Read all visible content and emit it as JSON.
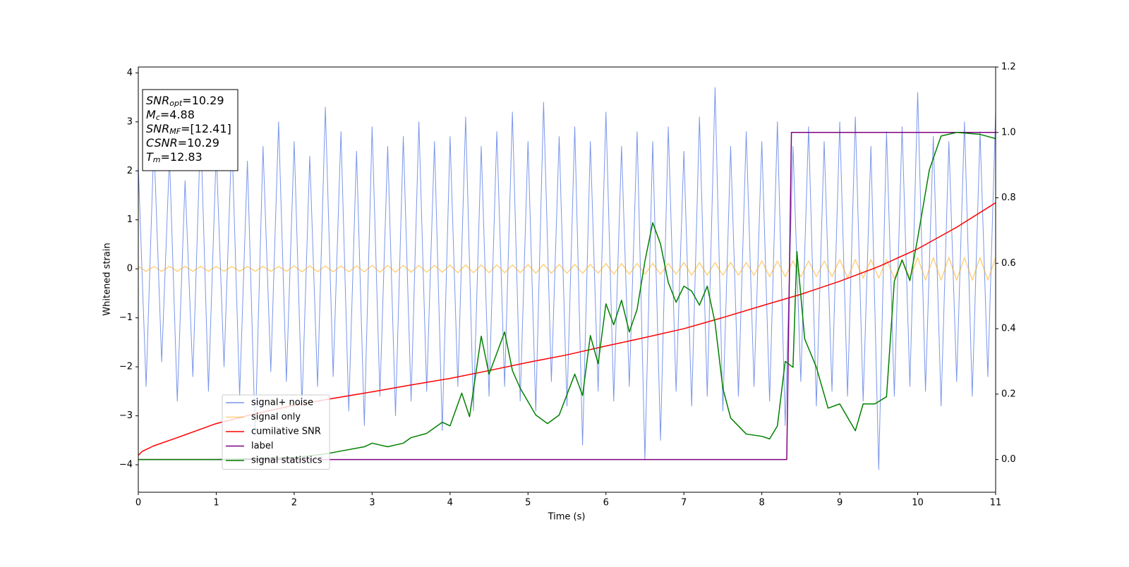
{
  "chart_data": {
    "type": "line",
    "xlabel": "Time (s)",
    "ylabel": "Whitened strain",
    "xlim": [
      0,
      11
    ],
    "xticks": [
      0,
      1,
      2,
      3,
      4,
      5,
      6,
      7,
      8,
      9,
      10,
      11
    ],
    "ylim": [
      -4.56,
      4.12
    ],
    "yticks": [
      {
        "value": -4,
        "label": "−4"
      },
      {
        "value": -3,
        "label": "−3"
      },
      {
        "value": -2,
        "label": "−2"
      },
      {
        "value": -1,
        "label": "−1"
      },
      0,
      1,
      2,
      3,
      4
    ],
    "y2lim": [
      -0.1,
      1.2
    ],
    "y2ticks": [
      {
        "value": 0,
        "label": "0.0"
      },
      0.2,
      0.4,
      0.6,
      0.8,
      {
        "value": 1,
        "label": "1.0"
      },
      1.2
    ],
    "grid": false,
    "legend_loc": "lower left",
    "annotation_lines": [
      {
        "main": "SNR",
        "sub": "opt",
        "rest": "=10.29"
      },
      {
        "main": "M",
        "sub": "c",
        "rest": "=4.88"
      },
      {
        "main": "SNR",
        "sub": "MF",
        "rest": "=[12.41]"
      },
      {
        "main": "CSNR",
        "rest": "=10.29"
      },
      {
        "main": "T",
        "sub": "m",
        "rest": "=12.83"
      }
    ],
    "x": [
      0,
      0.1,
      0.2,
      0.3,
      0.4,
      0.5,
      0.6,
      0.7,
      0.8,
      0.9,
      1,
      1.1,
      1.2,
      1.3,
      1.4,
      1.5,
      1.6,
      1.7,
      1.8,
      1.9,
      2,
      2.1,
      2.2,
      2.3,
      2.4,
      2.5,
      2.6,
      2.7,
      2.8,
      2.9,
      3,
      3.1,
      3.2,
      3.3,
      3.4,
      3.5,
      3.6,
      3.7,
      3.8,
      3.9,
      4,
      4.1,
      4.2,
      4.3,
      4.4,
      4.5,
      4.6,
      4.7,
      4.8,
      4.9,
      5,
      5.1,
      5.2,
      5.3,
      5.4,
      5.5,
      5.6,
      5.7,
      5.8,
      5.9,
      6,
      6.1,
      6.2,
      6.3,
      6.4,
      6.5,
      6.6,
      6.7,
      6.8,
      6.9,
      7,
      7.1,
      7.2,
      7.3,
      7.4,
      7.5,
      7.6,
      7.7,
      7.8,
      7.9,
      8,
      8.1,
      8.2,
      8.3,
      8.4,
      8.5,
      8.6,
      8.7,
      8.8,
      8.9,
      9,
      9.1,
      9.2,
      9.3,
      9.4,
      9.5,
      9.6,
      9.7,
      9.8,
      9.9,
      10,
      10.1,
      10.2,
      10.3,
      10.4,
      10.5,
      10.6,
      10.7,
      10.8,
      10.9,
      11
    ],
    "series": [
      {
        "name": "signal+ noise",
        "color": "#4169e1",
        "alpha": 0.7,
        "width": 1,
        "values": [
          2.1,
          -2.4,
          2.6,
          -1.9,
          2.3,
          -2.7,
          1.8,
          -2.2,
          2.9,
          -2.5,
          2.4,
          -2.0,
          2.7,
          -2.6,
          2.2,
          -3.4,
          2.5,
          -2.1,
          3.0,
          -2.3,
          2.6,
          -2.8,
          2.3,
          -2.4,
          3.3,
          -2.2,
          2.8,
          -2.9,
          2.4,
          -3.2,
          2.9,
          -2.6,
          2.5,
          -3.0,
          2.7,
          -2.7,
          3.0,
          -2.5,
          2.6,
          -3.3,
          2.7,
          -2.4,
          3.1,
          -2.9,
          2.5,
          -2.6,
          2.8,
          -2.4,
          3.2,
          -2.7,
          2.6,
          -2.9,
          3.4,
          -2.3,
          2.7,
          -2.8,
          2.9,
          -3.6,
          2.6,
          -2.5,
          3.2,
          -2.7,
          2.5,
          -2.4,
          2.8,
          -3.9,
          2.6,
          -3.5,
          2.9,
          -2.5,
          2.4,
          -2.8,
          3.1,
          -2.6,
          3.7,
          -2.9,
          2.5,
          -2.6,
          2.8,
          -2.4,
          2.6,
          -2.7,
          3.0,
          -3.2,
          2.5,
          -2.3,
          2.9,
          -2.8,
          2.6,
          -2.5,
          3.0,
          -2.6,
          3.1,
          -2.7,
          2.5,
          -4.1,
          2.8,
          -2.6,
          2.9,
          -2.4,
          3.6,
          -2.5,
          2.7,
          -2.8,
          2.6,
          -2.3,
          3.0,
          -2.6,
          2.8,
          -2.2,
          3.2
        ]
      },
      {
        "name": "signal only",
        "color": "#ffa500",
        "alpha": 0.5,
        "width": 1.5,
        "values": [
          0.05,
          -0.05,
          0.05,
          -0.05,
          0.05,
          -0.05,
          0.05,
          -0.05,
          0.05,
          -0.05,
          0.05,
          -0.05,
          0.05,
          -0.05,
          0.05,
          -0.05,
          0.05,
          -0.05,
          0.05,
          -0.05,
          0.06,
          -0.06,
          0.06,
          -0.06,
          0.06,
          -0.06,
          0.06,
          -0.06,
          0.06,
          -0.06,
          0.07,
          -0.07,
          0.07,
          -0.07,
          0.07,
          -0.07,
          0.07,
          -0.07,
          0.07,
          -0.07,
          0.08,
          -0.08,
          0.08,
          -0.08,
          0.08,
          -0.08,
          0.08,
          -0.08,
          0.08,
          -0.08,
          0.09,
          -0.09,
          0.09,
          -0.09,
          0.09,
          -0.09,
          0.09,
          -0.09,
          0.09,
          -0.09,
          0.11,
          -0.11,
          0.11,
          -0.11,
          0.11,
          -0.11,
          0.11,
          -0.11,
          0.11,
          -0.11,
          0.13,
          -0.13,
          0.13,
          -0.13,
          0.13,
          -0.13,
          0.13,
          -0.13,
          0.13,
          -0.13,
          0.16,
          -0.16,
          0.16,
          -0.16,
          0.16,
          -0.16,
          0.16,
          -0.16,
          0.16,
          -0.16,
          0.19,
          -0.19,
          0.19,
          -0.19,
          0.19,
          -0.19,
          0.19,
          -0.19,
          0.19,
          -0.19,
          0.23,
          -0.23,
          0.23,
          -0.23,
          0.23,
          -0.23,
          0.23,
          -0.23,
          0.23,
          -0.23,
          0.23
        ]
      },
      {
        "name": "cumilative SNR",
        "color": "#ff0000",
        "alpha": 1,
        "width": 1.5,
        "axis": "y2",
        "x": [
          0,
          0.05,
          0.2,
          0.5,
          1,
          1.5,
          2,
          2.5,
          3,
          3.5,
          4,
          4.5,
          5,
          5.5,
          6,
          6.5,
          7,
          7.5,
          8,
          8.5,
          9,
          9.5,
          10,
          10.5,
          11
        ],
        "values": [
          0.013,
          0.025,
          0.042,
          0.067,
          0.11,
          0.14,
          0.166,
          0.187,
          0.207,
          0.228,
          0.248,
          0.272,
          0.297,
          0.32,
          0.347,
          0.373,
          0.4,
          0.434,
          0.47,
          0.505,
          0.545,
          0.59,
          0.644,
          0.71,
          0.785
        ]
      },
      {
        "name": "label",
        "color": "#800080",
        "alpha": 1,
        "width": 1.5,
        "axis": "y2",
        "x": [
          0,
          8.32,
          8.38,
          11
        ],
        "values": [
          0,
          0,
          1,
          1
        ]
      },
      {
        "name": "signal statistics",
        "color": "#008000",
        "alpha": 1,
        "width": 1.5,
        "axis": "y2",
        "x": [
          0,
          1,
          2,
          2.4,
          2.6,
          2.9,
          3,
          3.2,
          3.4,
          3.5,
          3.7,
          3.9,
          4,
          4.15,
          4.25,
          4.4,
          4.5,
          4.6,
          4.7,
          4.8,
          4.9,
          5.1,
          5.25,
          5.4,
          5.6,
          5.7,
          5.8,
          5.9,
          6,
          6.1,
          6.2,
          6.3,
          6.4,
          6.5,
          6.6,
          6.7,
          6.8,
          6.9,
          7,
          7.1,
          7.2,
          7.3,
          7.4,
          7.5,
          7.6,
          7.8,
          8,
          8.1,
          8.2,
          8.3,
          8.4,
          8.45,
          8.55,
          8.7,
          8.85,
          9,
          9.2,
          9.3,
          9.45,
          9.6,
          9.7,
          9.8,
          9.9,
          10,
          10.15,
          10.3,
          10.5,
          10.8,
          11
        ],
        "values": [
          0,
          0,
          0.006,
          0.017,
          0.026,
          0.039,
          0.05,
          0.039,
          0.05,
          0.067,
          0.08,
          0.114,
          0.103,
          0.203,
          0.131,
          0.377,
          0.261,
          0.325,
          0.39,
          0.272,
          0.218,
          0.136,
          0.11,
          0.136,
          0.261,
          0.196,
          0.379,
          0.293,
          0.476,
          0.412,
          0.487,
          0.39,
          0.459,
          0.606,
          0.724,
          0.659,
          0.541,
          0.481,
          0.53,
          0.515,
          0.472,
          0.53,
          0.418,
          0.218,
          0.127,
          0.078,
          0.071,
          0.063,
          0.103,
          0.3,
          0.282,
          0.636,
          0.369,
          0.282,
          0.157,
          0.17,
          0.088,
          0.17,
          0.17,
          0.192,
          0.545,
          0.61,
          0.547,
          0.677,
          0.886,
          0.989,
          1.0,
          0.994,
          0.981
        ]
      }
    ]
  }
}
